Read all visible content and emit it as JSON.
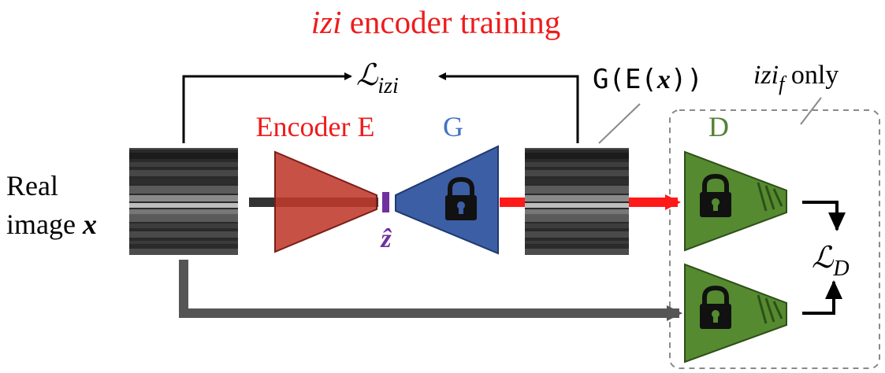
{
  "title": {
    "italic": "izi",
    "rest": " encoder training"
  },
  "loss_izi": {
    "symbol": "ℒ",
    "subscript": "izi"
  },
  "generator_output": {
    "prefix": "G(E(",
    "var": "x",
    "suffix": "))"
  },
  "izif_label": {
    "base": "izi",
    "subscript": "f",
    "suffix": " only"
  },
  "encoder_label": "Encoder E",
  "generator_label": "G",
  "discriminator_label": "D",
  "latent_label": "ẑ",
  "input_label": {
    "line1": "Real",
    "line2_text": "image ",
    "line2_var": "x"
  },
  "loss_d": {
    "symbol": "ℒ",
    "subscript": "D"
  },
  "colors": {
    "title_red": "#ee1c1c",
    "encoder_fill": "#c0392b",
    "generator_fill": "#3c5ea5",
    "discriminator_fill": "#558a30",
    "latent_purple": "#7030a0",
    "red_arrow": "#ff1a1a",
    "gray_arrow": "#555555"
  },
  "icons": [
    "lock-icon"
  ]
}
